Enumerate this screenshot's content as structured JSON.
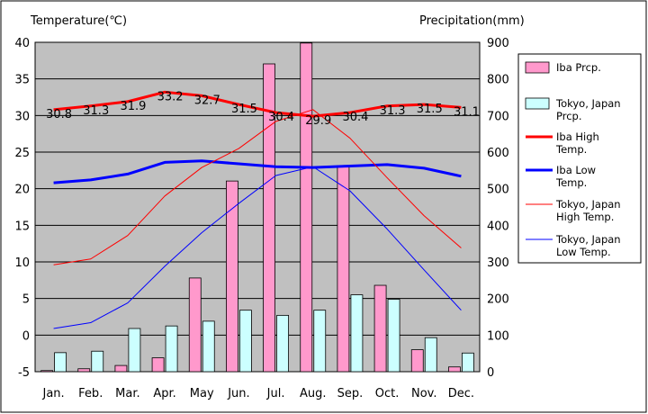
{
  "chart_data": {
    "type": "bar",
    "left_axis_title": "Temperature(℃)",
    "right_axis_title": "Precipitation(mm)",
    "categories": [
      "Jan.",
      "Feb.",
      "Mar.",
      "Apr.",
      "May",
      "Jun.",
      "Jul.",
      "Aug.",
      "Sep.",
      "Oct.",
      "Nov.",
      "Dec."
    ],
    "ylim_left": [
      -5,
      40
    ],
    "ylim_right": [
      0,
      900
    ],
    "left_ticks": [
      -5,
      0,
      5,
      10,
      15,
      20,
      25,
      30,
      35,
      40
    ],
    "right_ticks": [
      0,
      100,
      200,
      300,
      400,
      500,
      600,
      700,
      800,
      900
    ],
    "grid": true,
    "legend_position": "right",
    "series": [
      {
        "name": "Iba Prcp.",
        "kind": "bar",
        "axis": "right",
        "color": "#ff99cc",
        "values": [
          3,
          8,
          17,
          38,
          256,
          521,
          841,
          898,
          563,
          236,
          60,
          13
        ]
      },
      {
        "name": "Tokyo, Japan Prcp.",
        "kind": "bar",
        "axis": "right",
        "color": "#ccffff",
        "values": [
          52,
          56,
          118,
          125,
          138,
          168,
          154,
          168,
          210,
          198,
          93,
          51
        ]
      },
      {
        "name": "Iba High Temp.",
        "kind": "line",
        "axis": "left",
        "color": "#ff0000",
        "width": 3,
        "values": [
          30.8,
          31.3,
          31.9,
          33.2,
          32.7,
          31.5,
          30.4,
          29.9,
          30.4,
          31.3,
          31.5,
          31.1
        ],
        "labels": [
          "30.8",
          "31.3",
          "31.9",
          "33.2",
          "32.7",
          "31.5",
          "30.4",
          "29.9",
          "30.4",
          "31.3",
          "31.5",
          "31.1"
        ]
      },
      {
        "name": "Iba Low Temp.",
        "kind": "line",
        "axis": "left",
        "color": "#0000ff",
        "width": 3,
        "values": [
          20.8,
          21.2,
          22.0,
          23.6,
          23.8,
          23.4,
          23.0,
          22.9,
          23.1,
          23.3,
          22.8,
          21.7
        ]
      },
      {
        "name": "Tokyo, Japan High Temp.",
        "kind": "line",
        "axis": "left",
        "color": "#ff0000",
        "width": 1,
        "values": [
          9.6,
          10.4,
          13.6,
          19.0,
          22.9,
          25.5,
          29.2,
          30.8,
          26.9,
          21.5,
          16.3,
          11.9
        ]
      },
      {
        "name": "Tokyo, Japan Low Temp.",
        "kind": "line",
        "axis": "left",
        "color": "#0000ff",
        "width": 1,
        "values": [
          0.9,
          1.7,
          4.4,
          9.4,
          14.0,
          18.0,
          21.8,
          23.0,
          19.7,
          14.5,
          8.9,
          3.4
        ]
      }
    ],
    "legend": [
      {
        "label": "Iba Prcp.",
        "type": "bar",
        "color": "#ff99cc"
      },
      {
        "label": "Tokyo, Japan Prcp.",
        "type": "bar",
        "color": "#ccffff"
      },
      {
        "label": "Iba High Temp.",
        "type": "line",
        "color": "#ff0000",
        "width": 3
      },
      {
        "label": "Iba Low Temp.",
        "type": "line",
        "color": "#0000ff",
        "width": 3
      },
      {
        "label": "Tokyo, Japan High Temp.",
        "type": "line",
        "color": "#ff0000",
        "width": 1
      },
      {
        "label": "Tokyo, Japan Low Temp.",
        "type": "line",
        "color": "#0000ff",
        "width": 1
      }
    ]
  }
}
